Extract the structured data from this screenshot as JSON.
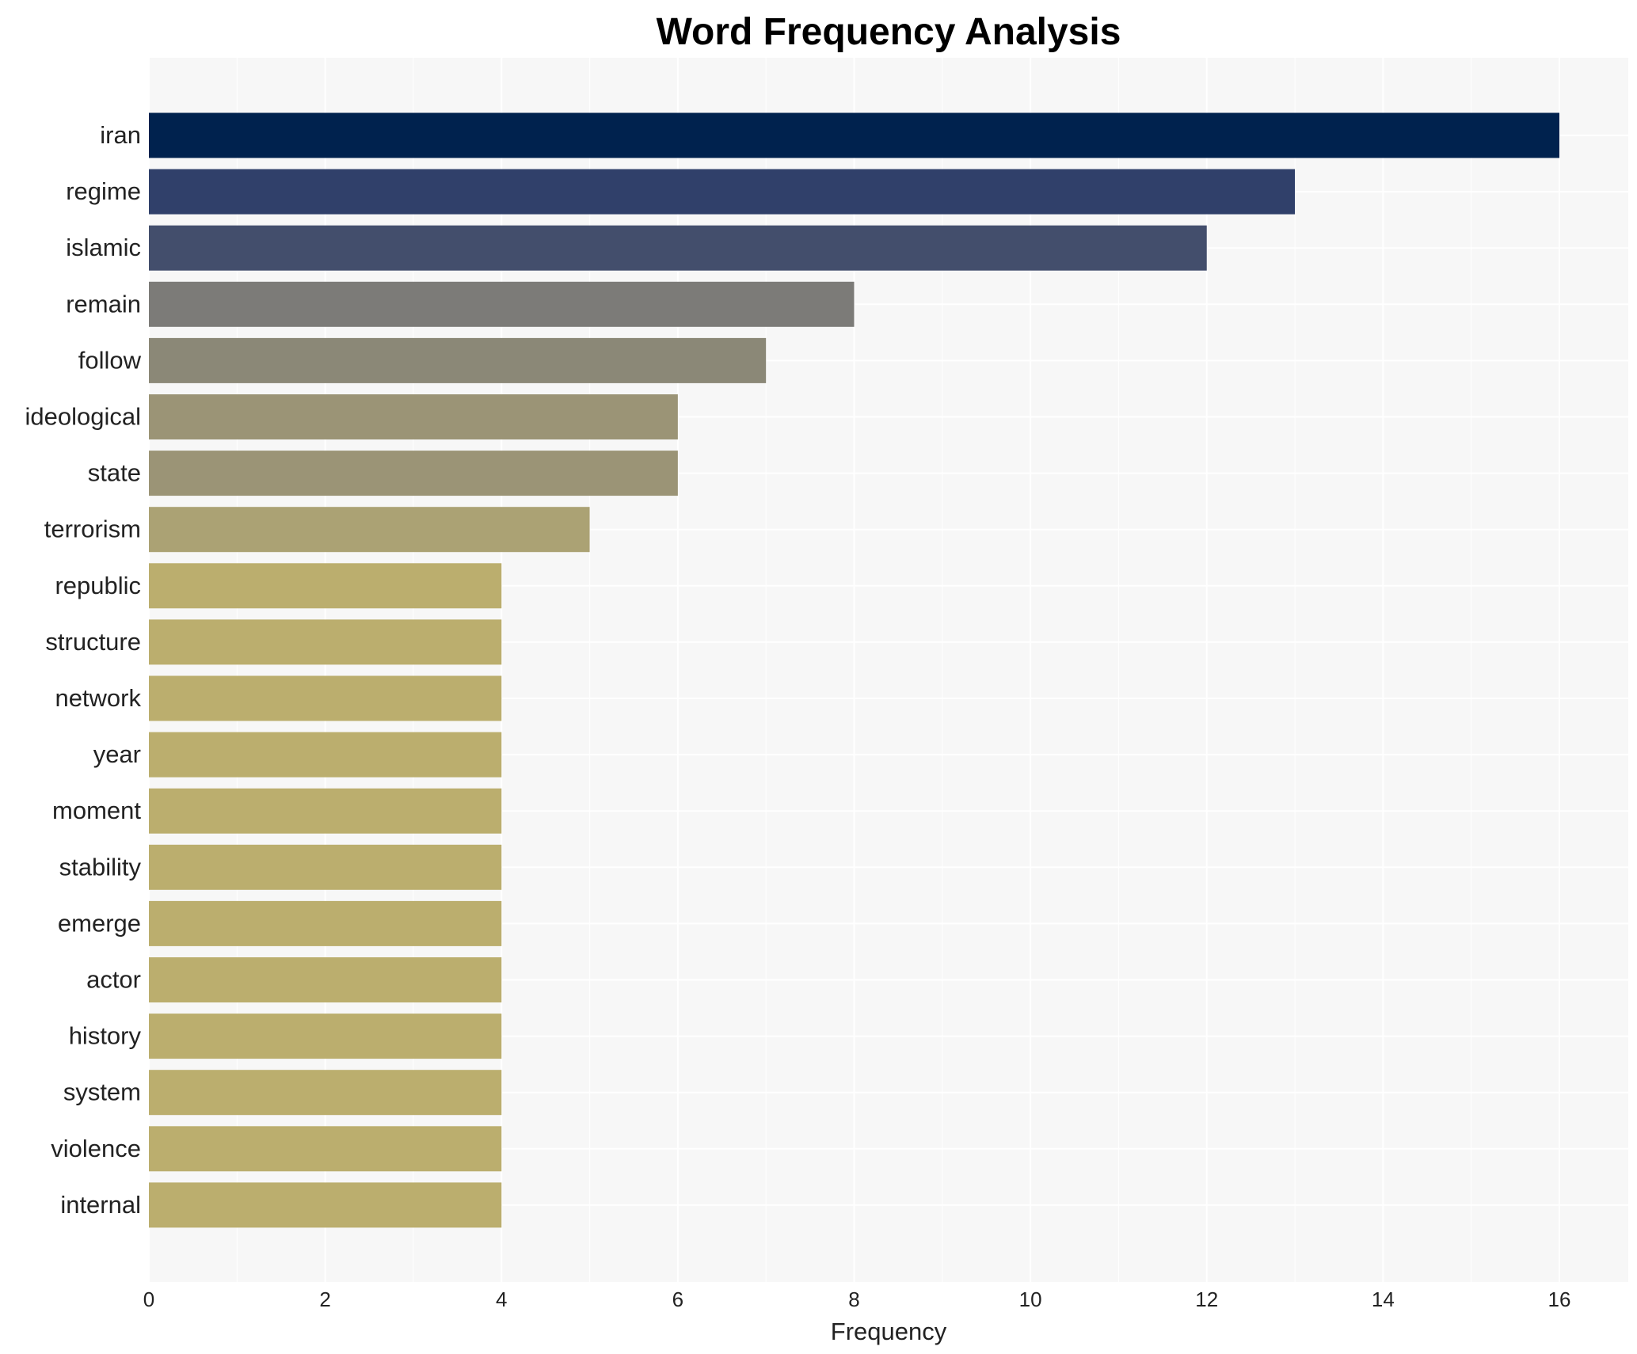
{
  "chart_data": {
    "type": "bar",
    "orientation": "horizontal",
    "title": "Word Frequency Analysis",
    "xlabel": "Frequency",
    "ylabel": "",
    "xlim": [
      0,
      16.8
    ],
    "x_ticks": [
      0,
      2,
      4,
      6,
      8,
      10,
      12,
      14,
      16
    ],
    "grid": true,
    "background": "#f7f7f7",
    "categories": [
      "iran",
      "regime",
      "islamic",
      "remain",
      "follow",
      "ideological",
      "state",
      "terrorism",
      "republic",
      "structure",
      "network",
      "year",
      "moment",
      "stability",
      "emerge",
      "actor",
      "history",
      "system",
      "violence",
      "internal"
    ],
    "values": [
      16,
      13,
      12,
      8,
      7,
      6,
      6,
      5,
      4,
      4,
      4,
      4,
      4,
      4,
      4,
      4,
      4,
      4,
      4,
      4
    ],
    "colors": [
      "#00224e",
      "#30406a",
      "#434e6c",
      "#7c7b78",
      "#8b8877",
      "#9b9476",
      "#9b9476",
      "#aba274",
      "#bbae6e",
      "#bbae6e",
      "#bbae6e",
      "#bbae6e",
      "#bbae6e",
      "#bbae6e",
      "#bbae6e",
      "#bbae6e",
      "#bbae6e",
      "#bbae6e",
      "#bbae6e",
      "#bbae6e"
    ]
  }
}
